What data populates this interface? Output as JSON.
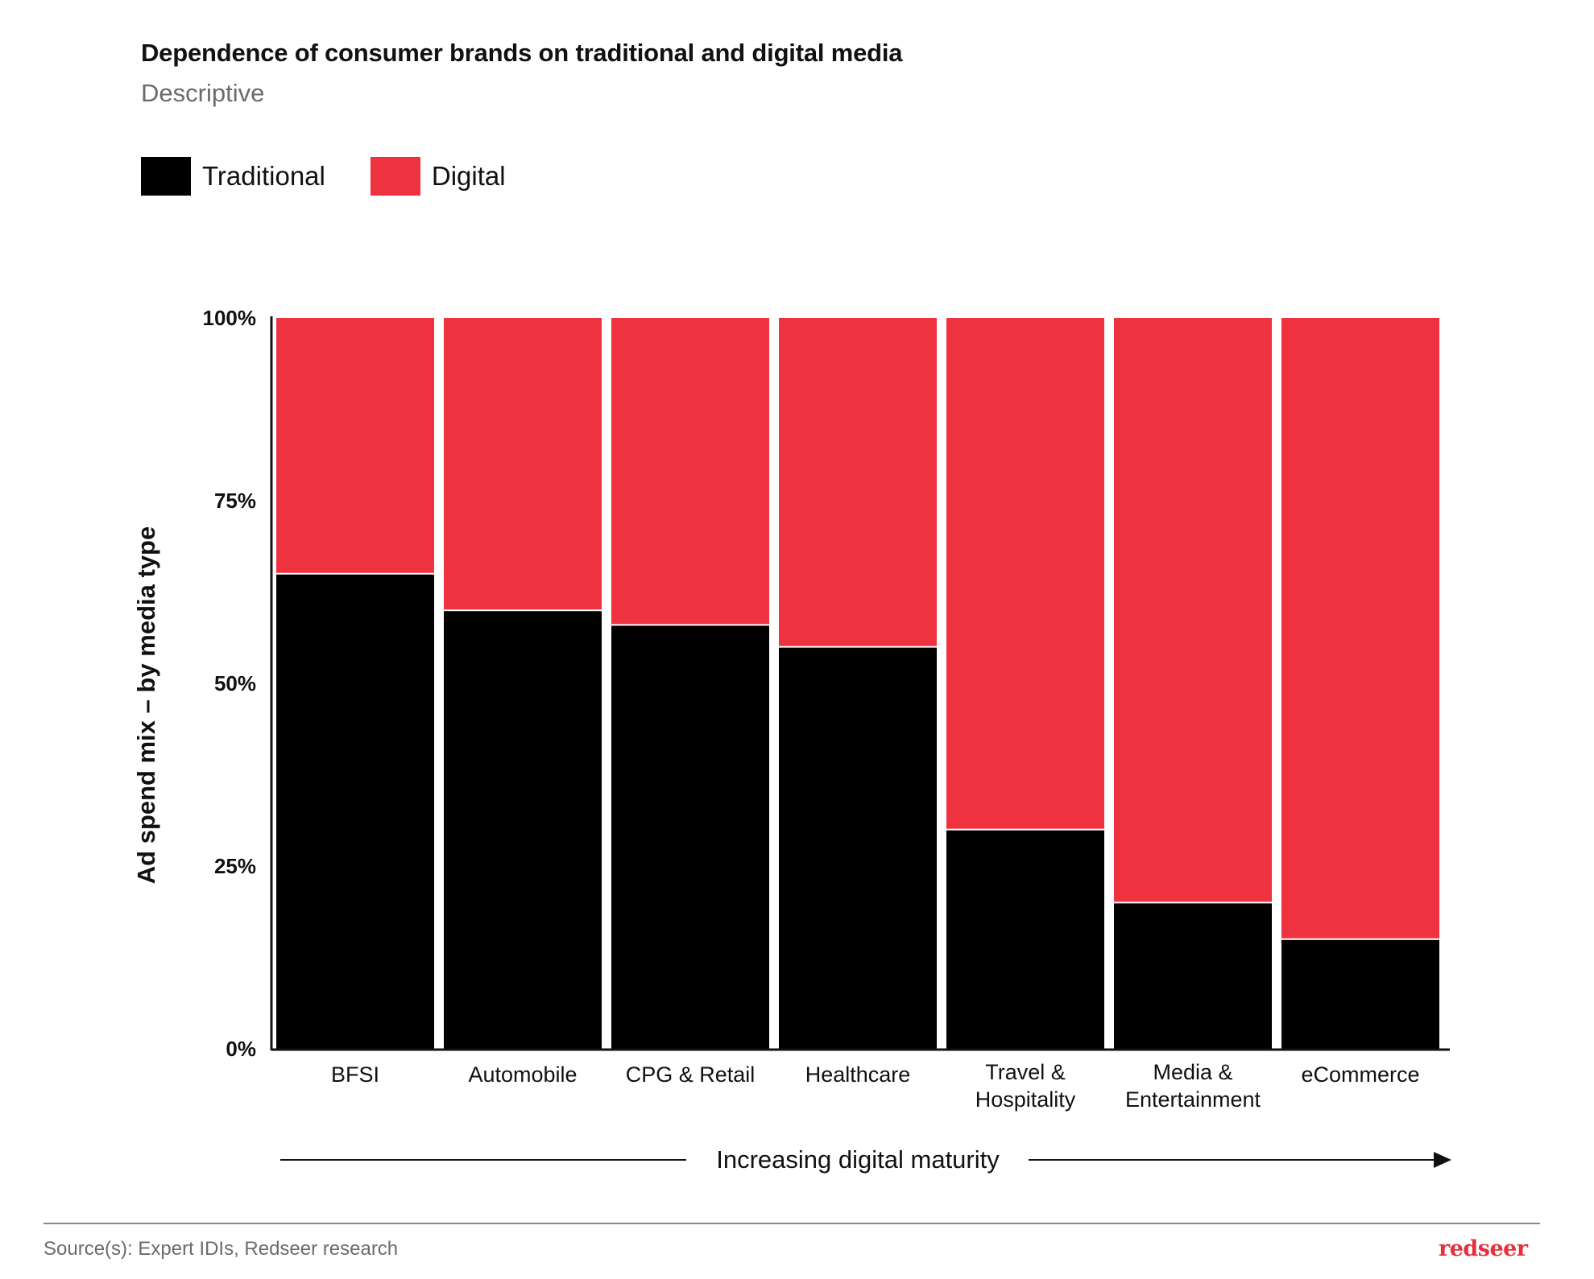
{
  "header": {
    "title": "Dependence of consumer brands on traditional and digital media",
    "subtitle": "Descriptive"
  },
  "colors": {
    "traditional": "#000000",
    "digital": "#ef323f",
    "brand": "#e3323d"
  },
  "chart_data": {
    "type": "bar",
    "stacked": true,
    "title": "Dependence of consumer brands on traditional and digital media",
    "subtitle": "Descriptive",
    "ylabel": "Ad spend mix – by media type",
    "xlabel": "Increasing digital maturity",
    "ylim": [
      0,
      100
    ],
    "yticks": [
      0,
      25,
      50,
      75,
      100
    ],
    "ytick_labels": [
      "0%",
      "25%",
      "50%",
      "75%",
      "100%"
    ],
    "categories": [
      [
        "BFSI"
      ],
      [
        "Automobile"
      ],
      [
        "CPG & Retail"
      ],
      [
        "Healthcare"
      ],
      [
        "Travel &",
        "Hospitality"
      ],
      [
        "Media &",
        "Entertainment"
      ],
      [
        "eCommerce"
      ]
    ],
    "series": [
      {
        "name": "Traditional",
        "color": "#000000",
        "values": [
          65,
          60,
          58,
          55,
          30,
          20,
          15
        ]
      },
      {
        "name": "Digital",
        "color": "#ef323f",
        "values": [
          35,
          40,
          42,
          45,
          70,
          80,
          85
        ]
      }
    ],
    "legend_position": "top-left"
  },
  "footer": {
    "source": "Source(s): Expert IDIs, Redseer research",
    "brand": "redseer"
  }
}
